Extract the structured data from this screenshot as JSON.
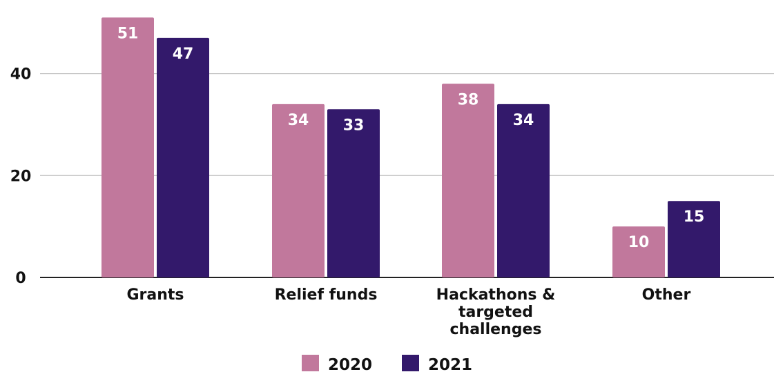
{
  "chart_data": {
    "type": "bar",
    "categories": [
      "Grants",
      "Relief funds",
      "Hackathons & targeted challenges",
      "Other"
    ],
    "category_lines": [
      [
        "Grants"
      ],
      [
        "Relief funds"
      ],
      [
        "Hackathons &",
        "targeted",
        "challenges"
      ],
      [
        "Other"
      ]
    ],
    "series": [
      {
        "name": "2020",
        "values": [
          51,
          34,
          38,
          10
        ],
        "color": "#c1789c"
      },
      {
        "name": "2021",
        "values": [
          47,
          33,
          34,
          15
        ],
        "color": "#33196b"
      }
    ],
    "ylim": [
      0,
      52
    ],
    "yticks": [
      0,
      20,
      40
    ],
    "grid": true,
    "legend": "bottom-center",
    "data_labels": true
  }
}
